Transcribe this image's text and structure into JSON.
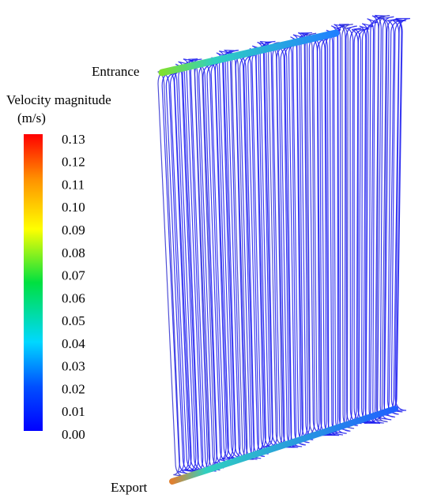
{
  "labels": {
    "entrance": "Entrance",
    "export": "Export"
  },
  "colorbar": {
    "title": "Velocity magnitude",
    "unit": "(m/s)",
    "ticks": [
      {
        "value": 0.13,
        "label": "0.13"
      },
      {
        "value": 0.12,
        "label": "0.12"
      },
      {
        "value": 0.11,
        "label": "0.11"
      },
      {
        "value": 0.1,
        "label": "0.10"
      },
      {
        "value": 0.09,
        "label": "0.09"
      },
      {
        "value": 0.08,
        "label": "0.08"
      },
      {
        "value": 0.07,
        "label": "0.07"
      },
      {
        "value": 0.06,
        "label": "0.06"
      },
      {
        "value": 0.05,
        "label": "0.05"
      },
      {
        "value": 0.04,
        "label": "0.04"
      },
      {
        "value": 0.03,
        "label": "0.03"
      },
      {
        "value": 0.02,
        "label": "0.02"
      },
      {
        "value": 0.01,
        "label": "0.01"
      },
      {
        "value": 0,
        "label": "0.00"
      }
    ]
  }
}
